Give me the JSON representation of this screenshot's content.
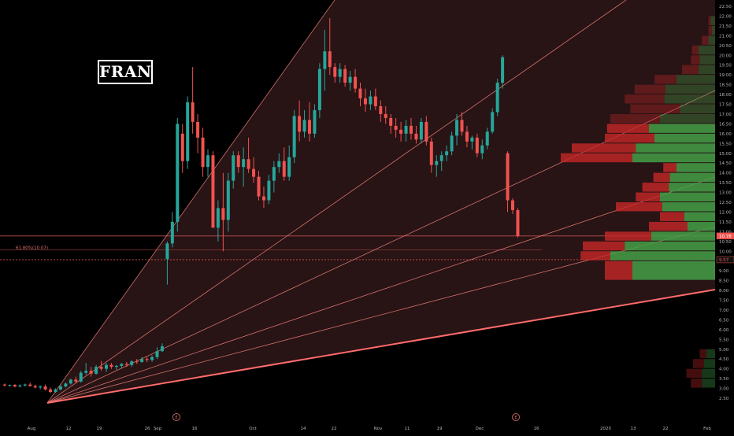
{
  "ticker": "FRAN",
  "colors": {
    "up": "#26a69a",
    "down": "#ef5350",
    "fan": "#ff8a80",
    "axis_text": "#b2b5be",
    "vp_up": "#43a047",
    "vp_down": "#c62828"
  },
  "chart_data": {
    "type": "candlestick",
    "title": "FRAN",
    "y_axis": {
      "ticks": [
        "22.50",
        "22.00",
        "21.50",
        "21.00",
        "20.50",
        "20.00",
        "19.50",
        "19.00",
        "18.50",
        "18.00",
        "17.50",
        "17.00",
        "16.50",
        "16.00",
        "15.50",
        "15.00",
        "14.50",
        "14.00",
        "13.50",
        "13.00",
        "12.50",
        "12.00",
        "11.50",
        "11.00",
        "10.50",
        "10.00",
        "9.50",
        "9.00",
        "8.50",
        "8.00",
        "7.50",
        "7.00",
        "6.50",
        "6.00",
        "5.50",
        "5.00",
        "4.50",
        "4.00",
        "3.50",
        "3.00",
        "2.50"
      ],
      "range": [
        2.5,
        22.5
      ]
    },
    "x_axis": {
      "labels": [
        "Aug",
        "12",
        "19",
        "26",
        "Sep",
        "16",
        "Oct",
        "14",
        "22",
        "Nov",
        "11",
        "19",
        "Dec",
        "16",
        "2020",
        "13",
        "22",
        "Feb"
      ]
    },
    "price_labels": [
      {
        "text": "10.78",
        "value": 10.78
      },
      {
        "text": "9.57",
        "value": 9.57
      }
    ],
    "fib_label": {
      "text": "61.80%(10.07)",
      "value": 10.07
    },
    "earnings_markers": [
      "E",
      "E"
    ],
    "series": [
      {
        "type": "candles",
        "fields": [
          "open",
          "high",
          "low",
          "close"
        ],
        "values": [
          [
            3.2,
            3.25,
            3.1,
            3.15
          ],
          [
            3.15,
            3.2,
            3.1,
            3.18
          ],
          [
            3.18,
            3.22,
            3.05,
            3.1
          ],
          [
            3.1,
            3.2,
            3.05,
            3.15
          ],
          [
            3.15,
            3.25,
            3.1,
            3.2
          ],
          [
            3.2,
            3.3,
            3.1,
            3.12
          ],
          [
            3.12,
            3.2,
            3.0,
            3.05
          ],
          [
            3.05,
            3.15,
            2.95,
            3.1
          ],
          [
            3.1,
            3.2,
            2.9,
            2.95
          ],
          [
            2.95,
            3.05,
            2.75,
            2.82
          ],
          [
            2.82,
            3.0,
            2.78,
            2.95
          ],
          [
            2.95,
            3.2,
            2.9,
            3.1
          ],
          [
            3.1,
            3.3,
            3.05,
            3.25
          ],
          [
            3.25,
            3.5,
            3.2,
            3.45
          ],
          [
            3.45,
            3.6,
            3.3,
            3.35
          ],
          [
            3.35,
            3.9,
            3.3,
            3.8
          ],
          [
            3.8,
            4.3,
            3.7,
            3.9
          ],
          [
            3.9,
            4.1,
            3.6,
            3.75
          ],
          [
            3.75,
            4.2,
            3.7,
            4.1
          ],
          [
            4.1,
            4.4,
            3.9,
            4.0
          ],
          [
            4.0,
            4.3,
            3.85,
            4.2
          ],
          [
            4.2,
            4.3,
            4.0,
            4.1
          ],
          [
            4.1,
            4.2,
            3.95,
            4.15
          ],
          [
            4.15,
            4.3,
            4.05,
            4.25
          ],
          [
            4.25,
            4.35,
            4.1,
            4.2
          ],
          [
            4.2,
            4.45,
            4.1,
            4.38
          ],
          [
            4.38,
            4.5,
            4.25,
            4.35
          ],
          [
            4.35,
            4.6,
            4.3,
            4.5
          ],
          [
            4.5,
            4.6,
            4.35,
            4.45
          ],
          [
            4.45,
            4.7,
            4.35,
            4.6
          ],
          [
            4.6,
            5.1,
            4.5,
            4.9
          ],
          [
            4.9,
            5.3,
            4.85,
            5.15
          ],
          [
            9.6,
            10.5,
            8.3,
            10.4
          ],
          [
            10.4,
            12.0,
            10.2,
            11.5
          ],
          [
            11.5,
            16.8,
            11.0,
            16.5
          ],
          [
            16.0,
            16.5,
            14.0,
            14.6
          ],
          [
            14.6,
            17.9,
            14.2,
            17.6
          ],
          [
            17.6,
            19.4,
            16.0,
            16.6
          ],
          [
            16.6,
            17.0,
            15.0,
            15.8
          ],
          [
            15.8,
            16.3,
            13.8,
            14.3
          ],
          [
            14.3,
            15.2,
            13.8,
            14.9
          ],
          [
            14.9,
            15.1,
            11.4,
            11.2
          ],
          [
            11.2,
            12.6,
            10.5,
            12.2
          ],
          [
            12.2,
            14.0,
            10.0,
            11.6
          ],
          [
            11.6,
            14.0,
            11.0,
            13.6
          ],
          [
            13.6,
            15.1,
            13.2,
            14.9
          ],
          [
            14.9,
            15.1,
            14.0,
            14.3
          ],
          [
            14.3,
            15.3,
            13.3,
            14.7
          ],
          [
            14.7,
            15.8,
            14.0,
            14.2
          ],
          [
            14.2,
            14.8,
            13.5,
            13.8
          ],
          [
            13.8,
            14.1,
            12.6,
            12.8
          ],
          [
            12.8,
            13.3,
            12.2,
            12.6
          ],
          [
            12.6,
            13.9,
            12.4,
            13.6
          ],
          [
            13.6,
            14.6,
            13.0,
            14.3
          ],
          [
            14.3,
            15.0,
            14.0,
            14.6
          ],
          [
            14.6,
            15.3,
            13.6,
            13.8
          ],
          [
            13.8,
            15.4,
            13.6,
            14.8
          ],
          [
            14.8,
            17.2,
            14.5,
            16.9
          ],
          [
            16.9,
            17.7,
            15.6,
            16.1
          ],
          [
            16.1,
            17.2,
            15.8,
            16.7
          ],
          [
            16.7,
            17.6,
            15.6,
            16.0
          ],
          [
            16.0,
            17.5,
            15.8,
            17.2
          ],
          [
            17.2,
            19.6,
            16.8,
            19.3
          ],
          [
            19.3,
            21.3,
            18.2,
            20.2
          ],
          [
            20.2,
            21.9,
            19.0,
            19.4
          ],
          [
            19.4,
            19.6,
            18.6,
            18.9
          ],
          [
            18.9,
            19.6,
            18.6,
            19.3
          ],
          [
            19.3,
            19.5,
            18.4,
            18.6
          ],
          [
            18.6,
            19.2,
            18.2,
            18.9
          ],
          [
            18.9,
            19.3,
            18.1,
            18.3
          ],
          [
            18.3,
            18.6,
            17.4,
            17.8
          ],
          [
            17.8,
            18.3,
            17.1,
            17.5
          ],
          [
            17.5,
            18.2,
            17.2,
            17.9
          ],
          [
            17.9,
            18.3,
            17.2,
            17.4
          ],
          [
            17.4,
            17.7,
            16.6,
            17.0
          ],
          [
            17.0,
            17.4,
            16.5,
            16.8
          ],
          [
            16.8,
            17.0,
            16.0,
            16.4
          ],
          [
            16.4,
            16.8,
            15.8,
            16.2
          ],
          [
            16.2,
            16.6,
            15.6,
            16.0
          ],
          [
            16.0,
            16.7,
            15.6,
            16.4
          ],
          [
            16.4,
            16.8,
            15.7,
            16.0
          ],
          [
            16.0,
            16.4,
            15.5,
            15.7
          ],
          [
            15.7,
            16.8,
            15.5,
            16.6
          ],
          [
            16.6,
            16.9,
            15.4,
            15.6
          ],
          [
            15.6,
            15.8,
            14.0,
            14.4
          ],
          [
            14.4,
            14.9,
            13.8,
            14.6
          ],
          [
            14.6,
            15.1,
            14.1,
            14.9
          ],
          [
            14.9,
            15.4,
            14.6,
            15.1
          ],
          [
            15.1,
            16.1,
            14.9,
            15.9
          ],
          [
            15.9,
            17.0,
            15.4,
            16.7
          ],
          [
            16.7,
            17.1,
            15.9,
            16.1
          ],
          [
            16.1,
            16.4,
            15.3,
            15.6
          ],
          [
            15.6,
            15.9,
            15.2,
            15.8
          ],
          [
            15.8,
            16.0,
            14.8,
            15.0
          ],
          [
            15.0,
            15.7,
            14.7,
            15.4
          ],
          [
            15.4,
            16.3,
            15.2,
            16.1
          ],
          [
            16.1,
            17.3,
            16.0,
            17.1
          ],
          [
            17.1,
            18.8,
            16.9,
            18.6
          ],
          [
            18.6,
            20.0,
            18.3,
            19.9
          ],
          [
            15.0,
            15.1,
            12.0,
            12.6
          ],
          [
            12.6,
            12.7,
            11.9,
            12.1
          ],
          [
            12.1,
            12.2,
            10.7,
            10.78
          ]
        ]
      }
    ],
    "volume_profile": {
      "fields": [
        "price_low",
        "price_high",
        "buy_volume",
        "sell_volume"
      ],
      "rows": [
        [
          8.5,
          9.5,
          75,
          25
        ],
        [
          9.5,
          10.0,
          95,
          27
        ],
        [
          10.0,
          10.5,
          82,
          38
        ],
        [
          10.5,
          11.0,
          58,
          42
        ],
        [
          11.0,
          11.5,
          25,
          35
        ],
        [
          11.5,
          12.0,
          28,
          22
        ],
        [
          12.0,
          12.5,
          48,
          42
        ],
        [
          12.5,
          13.0,
          50,
          22
        ],
        [
          13.0,
          13.5,
          42,
          24
        ],
        [
          13.5,
          14.0,
          41,
          15
        ],
        [
          14.0,
          14.5,
          35,
          12
        ],
        [
          14.5,
          15.0,
          75,
          65
        ],
        [
          15.0,
          15.5,
          72,
          58
        ],
        [
          15.5,
          16.0,
          55,
          45
        ],
        [
          16.0,
          16.5,
          60,
          38
        ],
        [
          16.5,
          17.0,
          50,
          45
        ],
        [
          17.0,
          17.5,
          32,
          45
        ],
        [
          17.5,
          18.0,
          46,
          36
        ],
        [
          18.0,
          18.5,
          45,
          28
        ],
        [
          18.5,
          19.0,
          35,
          20
        ],
        [
          19.0,
          19.5,
          15,
          15
        ],
        [
          19.5,
          20.0,
          14,
          8
        ],
        [
          20.0,
          20.5,
          15,
          6
        ],
        [
          20.5,
          21.0,
          6,
          6
        ],
        [
          21.0,
          21.5,
          3,
          3
        ],
        [
          21.5,
          22.0,
          4,
          2
        ],
        [
          3.0,
          3.5,
          12,
          10
        ],
        [
          3.5,
          4.0,
          12,
          14
        ],
        [
          4.0,
          4.5,
          10,
          10
        ],
        [
          4.5,
          5.0,
          8,
          6
        ]
      ]
    },
    "fan_lines": 5
  }
}
